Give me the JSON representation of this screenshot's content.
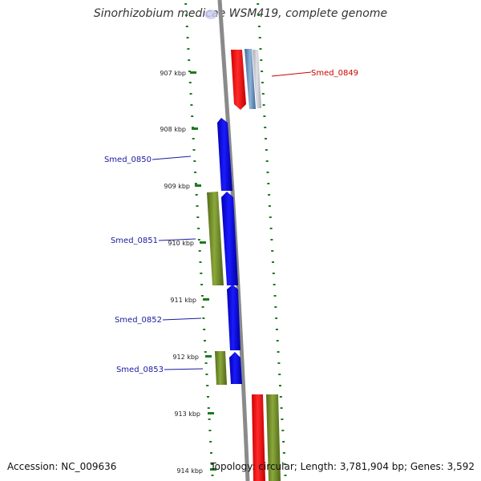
{
  "header": {
    "title": "Sinorhizobium medicae WSM419, complete genome"
  },
  "footer": {
    "accession": "Accession: NC_009636",
    "summary": "Topology: circular; Length: 3,781,904 bp; Genes: 3,592"
  },
  "ruler": {
    "unit": "kbp",
    "ticks": [
      {
        "label": "907 kbp"
      },
      {
        "label": "908 kbp"
      },
      {
        "label": "909 kbp"
      },
      {
        "label": "910 kbp"
      },
      {
        "label": "911 kbp"
      },
      {
        "label": "912 kbp"
      },
      {
        "label": "913 kbp"
      },
      {
        "label": "914 kbp"
      }
    ]
  },
  "gene_labels": [
    {
      "name": "Smed_0849",
      "color": "#cc0000"
    },
    {
      "name": "Smed_0850",
      "color": "#1a1aa0"
    },
    {
      "name": "Smed_0851",
      "color": "#1a1aa0"
    },
    {
      "name": "Smed_0852",
      "color": "#1a1aa0"
    },
    {
      "name": "Smed_0853",
      "color": "#1a1aa0"
    }
  ],
  "colors": {
    "backbone": "#808080",
    "forward_track_dots": "#1e7a1e",
    "gene_blue": "#0000dd",
    "gene_red": "#ff0000",
    "gene_olive": "#6b8e23",
    "gene_steel": "#5b84b1",
    "gene_grey": "#c0c0c8"
  }
}
